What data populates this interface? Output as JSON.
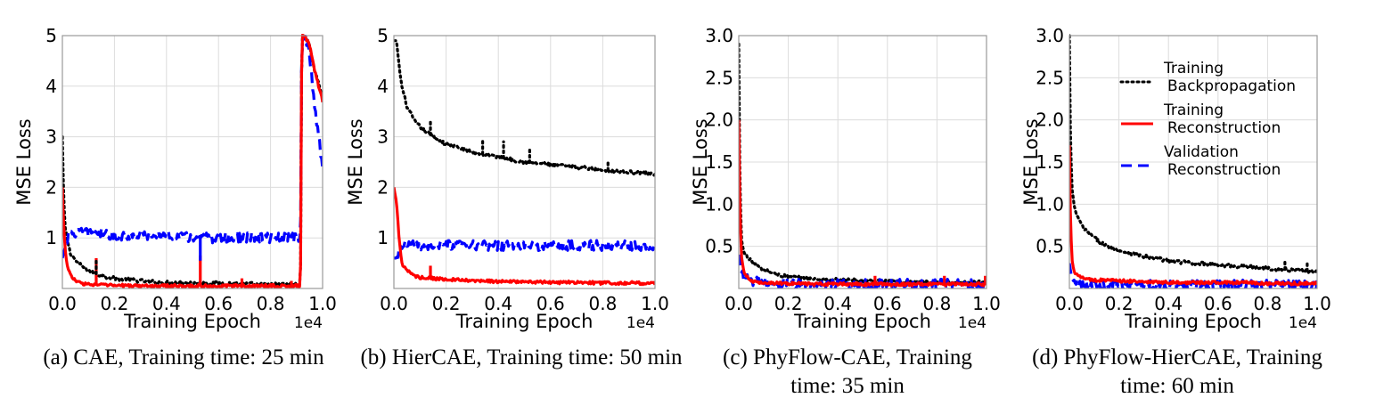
{
  "colors": {
    "training_backprop": "#000000",
    "training_recon": "#ff0000",
    "validation_recon": "#0000ff",
    "grid": "#dcdcdc",
    "frame": "#999999"
  },
  "chart_data": [
    {
      "id": "a",
      "type": "line",
      "caption": "(a) CAE, Training time: 25 min",
      "xlabel": "Training Epoch",
      "ylabel": "MSE Loss",
      "x_multiplier": "1e4",
      "xlim": [
        0,
        1.0
      ],
      "ylim": [
        0,
        5
      ],
      "yticks": [
        "1",
        "2",
        "3",
        "4",
        "5"
      ],
      "ytick_values": [
        1,
        2,
        3,
        4,
        5
      ],
      "xticks": [
        "0.0",
        "0.2",
        "0.4",
        "0.6",
        "0.8",
        "1.0"
      ],
      "xtick_values": [
        0,
        0.2,
        0.4,
        0.6,
        0.8,
        1.0
      ],
      "grid": true,
      "series": [
        {
          "key": "backprop",
          "style": "dotted",
          "x": [
            0,
            0.003,
            0.01,
            0.03,
            0.06,
            0.1,
            0.15,
            0.2,
            0.3,
            0.4,
            0.5,
            0.6,
            0.7,
            0.8,
            0.9,
            0.915,
            0.92,
            0.93,
            0.95,
            0.97,
            1.0
          ],
          "y": [
            3.0,
            2.2,
            1.2,
            0.7,
            0.5,
            0.35,
            0.25,
            0.2,
            0.15,
            0.12,
            0.11,
            0.1,
            0.09,
            0.08,
            0.08,
            0.08,
            5.0,
            5.0,
            4.8,
            4.3,
            3.8
          ]
        },
        {
          "key": "recon",
          "style": "solid",
          "x": [
            0,
            0.003,
            0.01,
            0.02,
            0.04,
            0.06,
            0.1,
            0.2,
            0.3,
            0.4,
            0.5,
            0.6,
            0.7,
            0.8,
            0.9,
            0.915,
            0.92,
            0.93,
            0.95,
            0.97,
            1.0
          ],
          "y": [
            2.0,
            1.5,
            0.8,
            0.4,
            0.2,
            0.12,
            0.08,
            0.06,
            0.05,
            0.05,
            0.05,
            0.05,
            0.05,
            0.05,
            0.05,
            0.05,
            5.0,
            5.0,
            4.8,
            4.3,
            3.7
          ]
        },
        {
          "key": "valid",
          "style": "dashed",
          "x": [
            0,
            0.01,
            0.02,
            0.04,
            0.06,
            0.1,
            0.15,
            0.2,
            0.3,
            0.4,
            0.5,
            0.6,
            0.7,
            0.8,
            0.9,
            0.915,
            0.92,
            0.93,
            0.95,
            0.97,
            1.0
          ],
          "y": [
            0.6,
            0.8,
            1.0,
            1.1,
            1.1,
            1.1,
            1.1,
            1.05,
            1.05,
            1.05,
            1.0,
            1.0,
            1.0,
            1.0,
            1.0,
            1.0,
            5.0,
            5.0,
            4.6,
            3.6,
            2.4
          ]
        }
      ],
      "spikes": [
        {
          "key": "recon",
          "x": 0.13,
          "y": 0.6
        },
        {
          "key": "recon",
          "x": 0.53,
          "y": 0.65
        },
        {
          "key": "recon",
          "x": 0.69,
          "y": 0.2
        },
        {
          "key": "recon",
          "x": 0.88,
          "y": 0.15
        },
        {
          "key": "valid",
          "x": 0.53,
          "y": 0.55
        },
        {
          "key": "backprop",
          "x": 0.13,
          "y": 0.55
        }
      ]
    },
    {
      "id": "b",
      "type": "line",
      "caption": "(b) HierCAE, Training time: 50 min",
      "xlabel": "Training Epoch",
      "ylabel": "MSE Loss",
      "x_multiplier": "1e4",
      "xlim": [
        0,
        1.0
      ],
      "ylim": [
        0,
        5
      ],
      "yticks": [
        "1",
        "2",
        "3",
        "4",
        "5"
      ],
      "ytick_values": [
        1,
        2,
        3,
        4,
        5
      ],
      "xticks": [
        "0.0",
        "0.2",
        "0.4",
        "0.6",
        "0.8",
        "1.0"
      ],
      "xtick_values": [
        0,
        0.2,
        0.4,
        0.6,
        0.8,
        1.0
      ],
      "grid": true,
      "series": [
        {
          "key": "backprop",
          "style": "dotted",
          "x": [
            0.01,
            0.02,
            0.03,
            0.05,
            0.08,
            0.1,
            0.15,
            0.2,
            0.3,
            0.4,
            0.5,
            0.6,
            0.7,
            0.8,
            0.9,
            1.0
          ],
          "y": [
            4.9,
            4.4,
            4.0,
            3.6,
            3.3,
            3.2,
            3.0,
            2.85,
            2.7,
            2.6,
            2.5,
            2.45,
            2.4,
            2.35,
            2.3,
            2.27
          ]
        },
        {
          "key": "recon",
          "style": "solid",
          "x": [
            0,
            0.01,
            0.02,
            0.03,
            0.05,
            0.08,
            0.1,
            0.15,
            0.2,
            0.3,
            0.4,
            0.5,
            0.6,
            0.7,
            0.8,
            0.9,
            1.0
          ],
          "y": [
            2.0,
            1.7,
            1.0,
            0.5,
            0.35,
            0.25,
            0.22,
            0.2,
            0.18,
            0.15,
            0.14,
            0.13,
            0.12,
            0.12,
            0.11,
            0.11,
            0.1
          ]
        },
        {
          "key": "valid",
          "style": "dashed",
          "x": [
            0,
            0.01,
            0.02,
            0.03,
            0.05,
            0.08,
            0.1,
            0.2,
            0.3,
            0.4,
            0.5,
            0.6,
            0.7,
            0.8,
            0.9,
            1.0
          ],
          "y": [
            0.6,
            0.6,
            0.75,
            0.85,
            0.85,
            0.85,
            0.85,
            0.85,
            0.85,
            0.85,
            0.85,
            0.85,
            0.85,
            0.85,
            0.85,
            0.85
          ]
        }
      ],
      "spikes": [
        {
          "key": "backprop",
          "x": 0.14,
          "y": 3.35
        },
        {
          "key": "backprop",
          "x": 0.34,
          "y": 2.95
        },
        {
          "key": "backprop",
          "x": 0.42,
          "y": 2.9
        },
        {
          "key": "backprop",
          "x": 0.52,
          "y": 2.8
        },
        {
          "key": "backprop",
          "x": 0.82,
          "y": 2.55
        },
        {
          "key": "recon",
          "x": 0.14,
          "y": 0.45
        }
      ]
    },
    {
      "id": "c",
      "type": "line",
      "caption": "(c) PhyFlow-CAE, Training time: 35 min",
      "xlabel": "Training Epoch",
      "ylabel": "MSE Loss",
      "x_multiplier": "1e4",
      "xlim": [
        0,
        1.0
      ],
      "ylim": [
        0,
        3.0
      ],
      "yticks": [
        "0.5",
        "1.0",
        "1.5",
        "2.0",
        "2.5",
        "3.0"
      ],
      "ytick_values": [
        0.5,
        1.0,
        1.5,
        2.0,
        2.5,
        3.0
      ],
      "xticks": [
        "0.0",
        "0.2",
        "0.4",
        "0.6",
        "0.8",
        "1.0"
      ],
      "xtick_values": [
        0,
        0.2,
        0.4,
        0.6,
        0.8,
        1.0
      ],
      "grid": true,
      "series": [
        {
          "key": "backprop",
          "style": "dotted",
          "x": [
            0,
            0.003,
            0.01,
            0.02,
            0.04,
            0.06,
            0.1,
            0.15,
            0.2,
            0.3,
            0.4,
            0.5,
            0.6,
            0.7,
            0.8,
            0.9,
            1.0
          ],
          "y": [
            2.9,
            1.6,
            0.6,
            0.45,
            0.35,
            0.3,
            0.22,
            0.17,
            0.14,
            0.11,
            0.1,
            0.09,
            0.08,
            0.08,
            0.07,
            0.07,
            0.07
          ]
        },
        {
          "key": "recon",
          "style": "solid",
          "x": [
            0,
            0.003,
            0.01,
            0.02,
            0.04,
            0.06,
            0.1,
            0.2,
            0.3,
            0.4,
            0.5,
            0.6,
            0.7,
            0.8,
            0.9,
            1.0
          ],
          "y": [
            2.0,
            1.2,
            0.4,
            0.2,
            0.12,
            0.08,
            0.07,
            0.06,
            0.05,
            0.05,
            0.05,
            0.05,
            0.05,
            0.05,
            0.05,
            0.05
          ]
        },
        {
          "key": "valid",
          "style": "dashed",
          "x": [
            0,
            0.005,
            0.01,
            0.02,
            0.04,
            0.06,
            0.1,
            0.2,
            0.3,
            0.4,
            0.5,
            0.6,
            0.7,
            0.8,
            0.9,
            1.0
          ],
          "y": [
            0.4,
            0.3,
            0.2,
            0.15,
            0.1,
            0.08,
            0.07,
            0.06,
            0.05,
            0.05,
            0.05,
            0.05,
            0.05,
            0.05,
            0.05,
            0.05
          ]
        }
      ],
      "spikes": [
        {
          "key": "recon",
          "x": 0.55,
          "y": 0.15
        },
        {
          "key": "recon",
          "x": 0.83,
          "y": 0.15
        },
        {
          "key": "recon",
          "x": 0.995,
          "y": 0.15
        }
      ]
    },
    {
      "id": "d",
      "type": "line",
      "caption": "(d) PhyFlow-HierCAE, Training time: 60 min",
      "xlabel": "Training Epoch",
      "ylabel": "MSE Loss",
      "x_multiplier": "1e4",
      "xlim": [
        0,
        1.0
      ],
      "ylim": [
        0,
        3.0
      ],
      "yticks": [
        "0.5",
        "1.0",
        "1.5",
        "2.0",
        "2.5",
        "3.0"
      ],
      "ytick_values": [
        0.5,
        1.0,
        1.5,
        2.0,
        2.5,
        3.0
      ],
      "xticks": [
        "0.0",
        "0.2",
        "0.4",
        "0.6",
        "0.8",
        "1.0"
      ],
      "xtick_values": [
        0,
        0.2,
        0.4,
        0.6,
        0.8,
        1.0
      ],
      "grid": true,
      "legend": {
        "placement": "top-right",
        "entries": [
          {
            "key": "backprop",
            "line1": "Training",
            "line2": "Backpropagation"
          },
          {
            "key": "recon",
            "line1": "Training",
            "line2": "Reconstruction"
          },
          {
            "key": "valid",
            "line1": "Validation",
            "line2": "Reconstruction"
          }
        ]
      },
      "series": [
        {
          "key": "backprop",
          "style": "dotted",
          "x": [
            0,
            0.003,
            0.01,
            0.02,
            0.04,
            0.06,
            0.1,
            0.15,
            0.2,
            0.3,
            0.4,
            0.5,
            0.6,
            0.7,
            0.8,
            0.9,
            1.0
          ],
          "y": [
            3.0,
            2.0,
            1.2,
            0.95,
            0.8,
            0.7,
            0.6,
            0.5,
            0.45,
            0.38,
            0.33,
            0.3,
            0.28,
            0.26,
            0.24,
            0.22,
            0.2
          ]
        },
        {
          "key": "recon",
          "style": "solid",
          "x": [
            0,
            0.003,
            0.01,
            0.02,
            0.04,
            0.06,
            0.1,
            0.2,
            0.3,
            0.4,
            0.5,
            0.6,
            0.7,
            0.8,
            0.9,
            1.0
          ],
          "y": [
            1.7,
            1.0,
            0.35,
            0.2,
            0.15,
            0.12,
            0.1,
            0.09,
            0.08,
            0.07,
            0.07,
            0.07,
            0.07,
            0.06,
            0.06,
            0.06
          ]
        },
        {
          "key": "valid",
          "style": "dashed",
          "x": [
            0,
            0.005,
            0.01,
            0.02,
            0.04,
            0.06,
            0.1,
            0.2,
            0.3,
            0.4,
            0.5,
            0.6,
            0.7,
            0.8,
            0.9,
            1.0
          ],
          "y": [
            0.3,
            0.2,
            0.12,
            0.08,
            0.06,
            0.05,
            0.05,
            0.04,
            0.04,
            0.04,
            0.04,
            0.04,
            0.04,
            0.04,
            0.04,
            0.04
          ]
        }
      ],
      "spikes": [
        {
          "key": "backprop",
          "x": 0.31,
          "y": 0.42
        },
        {
          "key": "backprop",
          "x": 0.87,
          "y": 0.32
        },
        {
          "key": "backprop",
          "x": 0.96,
          "y": 0.3
        }
      ]
    }
  ]
}
